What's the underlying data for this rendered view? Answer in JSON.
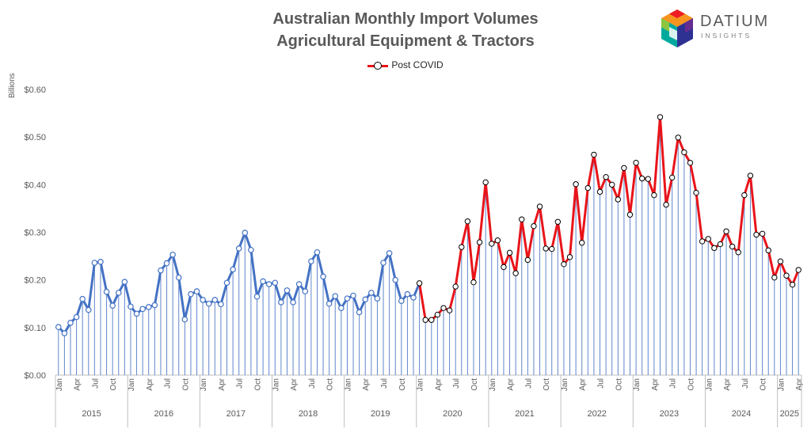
{
  "title_line1": "Australian Monthly Import Volumes",
  "title_line2": "Agricultural Equipment & Tractors",
  "logo": {
    "brand": "DATIUM",
    "sub": "INSIGHTS",
    "icon": "datium-cube-logo"
  },
  "colors": {
    "pre": "#4472c4",
    "post": "#e8141a",
    "bars": "#4472c4"
  },
  "chart_data": {
    "type": "line",
    "ylabel": "Billions",
    "ylim": [
      0,
      0.6
    ],
    "yticks": [
      "$0.00",
      "$0.10",
      "$0.20",
      "$0.30",
      "$0.40",
      "$0.50",
      "$0.60"
    ],
    "month_labels": [
      "Jan",
      "Apr",
      "Jul",
      "Oct"
    ],
    "years": [
      "2015",
      "2016",
      "2017",
      "2018",
      "2019",
      "2020",
      "2021",
      "2022",
      "2023",
      "2024",
      "2025"
    ],
    "legend": [
      "Post COVID"
    ],
    "start": "2015-01",
    "post_covid_start": "2020-01",
    "values": [
      0.101,
      0.088,
      0.11,
      0.122,
      0.16,
      0.137,
      0.236,
      0.238,
      0.175,
      0.146,
      0.173,
      0.196,
      0.144,
      0.129,
      0.139,
      0.143,
      0.147,
      0.22,
      0.235,
      0.253,
      0.205,
      0.117,
      0.17,
      0.176,
      0.158,
      0.15,
      0.158,
      0.149,
      0.194,
      0.222,
      0.266,
      0.299,
      0.263,
      0.165,
      0.197,
      0.191,
      0.194,
      0.153,
      0.178,
      0.153,
      0.191,
      0.176,
      0.239,
      0.258,
      0.207,
      0.15,
      0.166,
      0.141,
      0.161,
      0.167,
      0.132,
      0.159,
      0.173,
      0.161,
      0.236,
      0.256,
      0.2,
      0.156,
      0.17,
      0.163,
      0.193,
      0.116,
      0.116,
      0.127,
      0.141,
      0.136,
      0.186,
      0.269,
      0.323,
      0.195,
      0.279,
      0.405,
      0.276,
      0.283,
      0.227,
      0.257,
      0.214,
      0.327,
      0.242,
      0.313,
      0.354,
      0.266,
      0.265,
      0.322,
      0.233,
      0.248,
      0.401,
      0.278,
      0.393,
      0.463,
      0.385,
      0.416,
      0.4,
      0.369,
      0.435,
      0.337,
      0.446,
      0.413,
      0.412,
      0.378,
      0.542,
      0.358,
      0.415,
      0.499,
      0.468,
      0.446,
      0.383,
      0.281,
      0.286,
      0.267,
      0.275,
      0.302,
      0.27,
      0.258,
      0.378,
      0.419,
      0.295,
      0.297,
      0.262,
      0.205,
      0.239,
      0.209,
      0.19,
      0.221
    ]
  }
}
